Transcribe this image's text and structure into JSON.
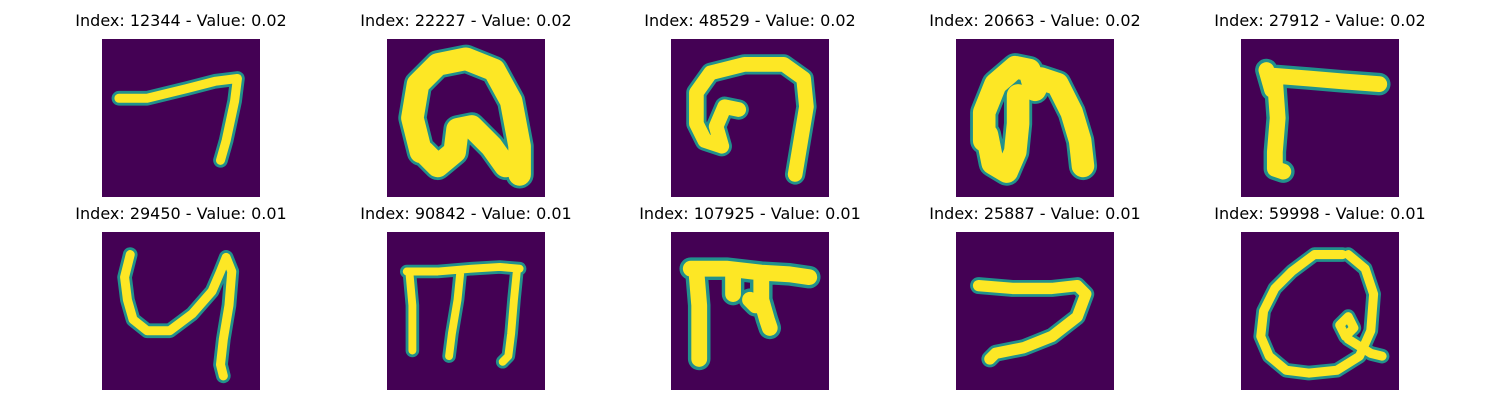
{
  "colors": {
    "background": "#440154",
    "edge": "#21918c",
    "stroke": "#fde725"
  },
  "panels": [
    {
      "title": "Index: 12344 - Value: 0.02",
      "glyph": "seven-like stroke"
    },
    {
      "title": "Index: 22227 - Value: 0.02",
      "glyph": "thick arch"
    },
    {
      "title": "Index: 48529 - Value: 0.02",
      "glyph": "hook arch"
    },
    {
      "title": "Index: 20663 - Value: 0.02",
      "glyph": "filled arch"
    },
    {
      "title": "Index: 27912 - Value: 0.02",
      "glyph": "gamma-like stroke"
    },
    {
      "title": "Index: 29450 - Value: 0.01",
      "glyph": "y-like stroke"
    },
    {
      "title": "Index: 90842 - Value: 0.01",
      "glyph": "three-leg stroke"
    },
    {
      "title": "Index: 107925 - Value: 0.01",
      "glyph": "pi-like stroke"
    },
    {
      "title": "Index: 25887 - Value: 0.01",
      "glyph": "horizontal hook"
    },
    {
      "title": "Index: 59998 - Value: 0.01",
      "glyph": "loop stroke"
    }
  ]
}
